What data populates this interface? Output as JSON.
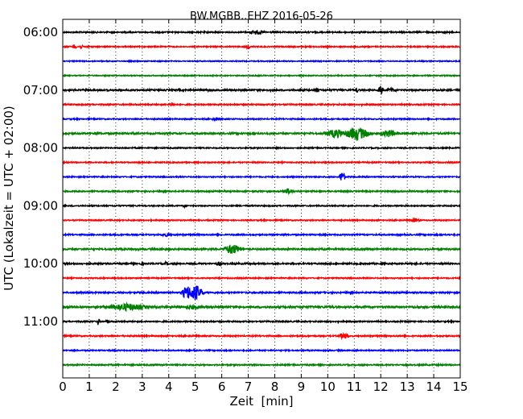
{
  "chart_data": {
    "type": "line",
    "title": "BW.MGBB..EHZ 2016-05-26",
    "xlabel": "Zeit  [min]",
    "ylabel": "UTC (Lokalzeit = UTC + 02:00)",
    "xlim": [
      0,
      15
    ],
    "x_ticks": [
      "0",
      "1",
      "2",
      "3",
      "4",
      "5",
      "6",
      "7",
      "8",
      "9",
      "10",
      "11",
      "12",
      "13",
      "14",
      "15"
    ],
    "grid": "vertical dotted",
    "trace_interval_min": 15,
    "y_tick_labels": [
      "06:00",
      "07:00",
      "08:00",
      "09:00",
      "10:00",
      "11:00"
    ],
    "series_colors": [
      "#000000",
      "#ff0000",
      "#0000ff",
      "#008000"
    ],
    "series": [
      {
        "start": "06:00",
        "color": "#000000",
        "noise": 0.8,
        "events": [
          {
            "t": 7.3,
            "amp": 3,
            "dur": 0.5
          }
        ]
      },
      {
        "start": "06:15",
        "color": "#ff0000",
        "noise": 0.7,
        "events": [
          {
            "t": 0.45,
            "amp": 4,
            "dur": 0.1
          },
          {
            "t": 0.7,
            "amp": 3,
            "dur": 0.1
          },
          {
            "t": 7.0,
            "amp": 4,
            "dur": 0.1
          }
        ]
      },
      {
        "start": "06:30",
        "color": "#0000ff",
        "noise": 0.6,
        "events": []
      },
      {
        "start": "06:45",
        "color": "#008000",
        "noise": 0.6,
        "events": []
      },
      {
        "start": "07:00",
        "color": "#000000",
        "noise": 1.0,
        "events": [
          {
            "t": 9.6,
            "amp": 3,
            "dur": 0.1
          },
          {
            "t": 11.1,
            "amp": 4,
            "dur": 0.1
          },
          {
            "t": 12.0,
            "amp": 6,
            "dur": 0.15
          },
          {
            "t": 12.4,
            "amp": 3,
            "dur": 0.3
          }
        ]
      },
      {
        "start": "07:15",
        "color": "#ff0000",
        "noise": 0.8,
        "events": [
          {
            "t": 4.1,
            "amp": 3,
            "dur": 0.2
          }
        ]
      },
      {
        "start": "07:30",
        "color": "#0000ff",
        "noise": 0.7,
        "events": [
          {
            "t": 5.8,
            "amp": 2.5,
            "dur": 0.3
          }
        ]
      },
      {
        "start": "07:45",
        "color": "#008000",
        "noise": 1.0,
        "events": [
          {
            "t": 10.3,
            "amp": 6,
            "dur": 0.6
          },
          {
            "t": 11.1,
            "amp": 9,
            "dur": 0.7
          },
          {
            "t": 12.3,
            "amp": 5,
            "dur": 0.5
          }
        ]
      },
      {
        "start": "08:00",
        "color": "#000000",
        "noise": 0.7,
        "events": []
      },
      {
        "start": "08:15",
        "color": "#ff0000",
        "noise": 0.7,
        "events": []
      },
      {
        "start": "08:30",
        "color": "#0000ff",
        "noise": 0.7,
        "events": [
          {
            "t": 10.55,
            "amp": 8,
            "dur": 0.15
          }
        ]
      },
      {
        "start": "08:45",
        "color": "#008000",
        "noise": 0.8,
        "events": [
          {
            "t": 8.5,
            "amp": 4,
            "dur": 0.3
          }
        ]
      },
      {
        "start": "09:00",
        "color": "#000000",
        "noise": 0.7,
        "events": [
          {
            "t": 4.6,
            "amp": 2.5,
            "dur": 0.1
          }
        ]
      },
      {
        "start": "09:15",
        "color": "#ff0000",
        "noise": 0.7,
        "events": [
          {
            "t": 13.3,
            "amp": 2.5,
            "dur": 0.3
          }
        ]
      },
      {
        "start": "09:30",
        "color": "#0000ff",
        "noise": 0.8,
        "events": [
          {
            "t": 3.9,
            "amp": 2.5,
            "dur": 0.3
          }
        ]
      },
      {
        "start": "09:45",
        "color": "#008000",
        "noise": 1.0,
        "events": [
          {
            "t": 6.4,
            "amp": 7,
            "dur": 0.5
          }
        ]
      },
      {
        "start": "10:00",
        "color": "#000000",
        "noise": 0.9,
        "events": [
          {
            "t": 3.0,
            "amp": 3,
            "dur": 0.1
          },
          {
            "t": 3.9,
            "amp": 3,
            "dur": 0.1
          },
          {
            "t": 5.9,
            "amp": 3,
            "dur": 0.2
          }
        ]
      },
      {
        "start": "10:15",
        "color": "#ff0000",
        "noise": 0.7,
        "events": []
      },
      {
        "start": "10:30",
        "color": "#0000ff",
        "noise": 0.9,
        "events": [
          {
            "t": 4.7,
            "amp": 10,
            "dur": 0.3
          },
          {
            "t": 5.0,
            "amp": 11,
            "dur": 0.4
          }
        ]
      },
      {
        "start": "10:45",
        "color": "#008000",
        "noise": 1.2,
        "events": [
          {
            "t": 2.4,
            "amp": 5,
            "dur": 1.2
          },
          {
            "t": 4.9,
            "amp": 3,
            "dur": 0.5
          }
        ]
      },
      {
        "start": "11:00",
        "color": "#000000",
        "noise": 0.8,
        "events": [
          {
            "t": 1.35,
            "amp": 4,
            "dur": 0.1
          },
          {
            "t": 1.7,
            "amp": 3,
            "dur": 0.1
          }
        ]
      },
      {
        "start": "11:15",
        "color": "#ff0000",
        "noise": 0.8,
        "events": [
          {
            "t": 10.6,
            "amp": 4,
            "dur": 0.3
          }
        ]
      },
      {
        "start": "11:30",
        "color": "#0000ff",
        "noise": 0.7,
        "events": []
      },
      {
        "start": "11:45",
        "color": "#008000",
        "noise": 0.8,
        "events": []
      }
    ]
  }
}
